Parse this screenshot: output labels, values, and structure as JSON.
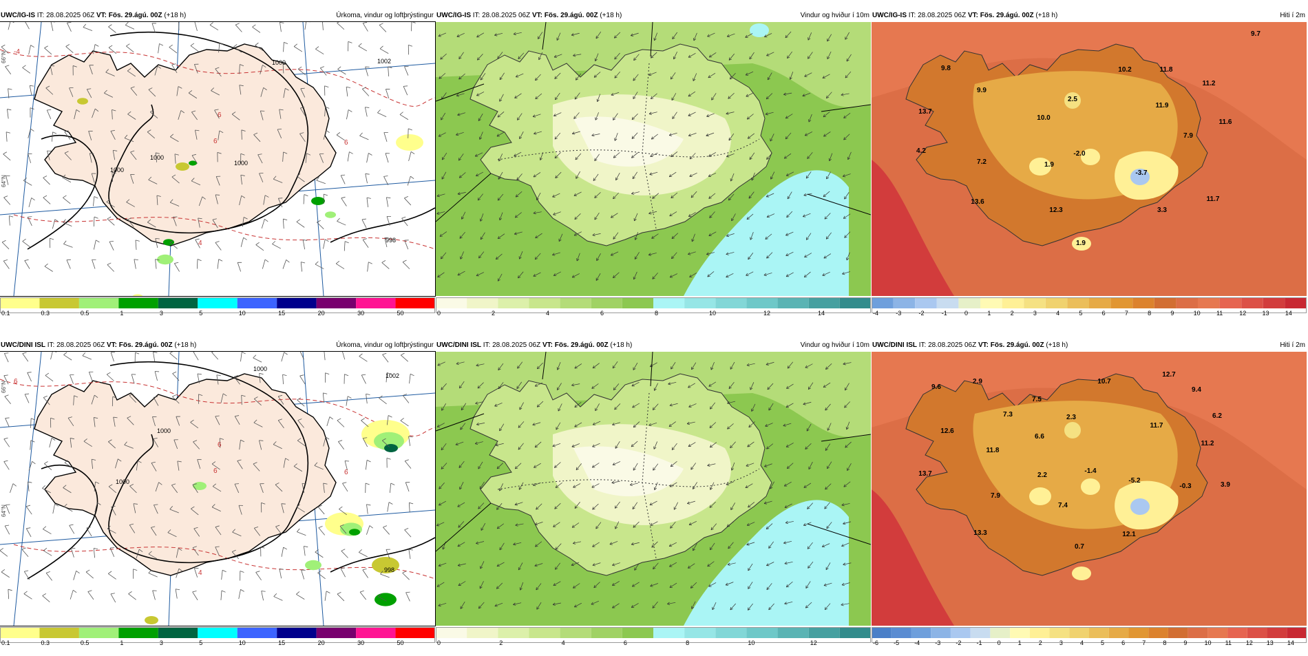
{
  "panels": [
    {
      "id": "p1",
      "model": "UWC/IG-IS",
      "it_label": "IT:",
      "it_value": "28.08.2025 06Z",
      "vt_label": "VT:",
      "vt_value": "Fös. 29.ágú. 00Z",
      "lead": "(+18 h)",
      "product": "Úrkoma, vindur og loftþrýstingur",
      "map_type": "precip",
      "isobar_labels": [
        "1000",
        "1000",
        "1000",
        "1002",
        "1000",
        "998"
      ],
      "temp_contour_labels": [
        "-4",
        "6",
        "6",
        "6",
        "4"
      ],
      "colorbar": {
        "colors": [
          "#ffff8c",
          "#c8c832",
          "#a0f078",
          "#00a000",
          "#006440",
          "#00ffff",
          "#3c64ff",
          "#00008c",
          "#78006e",
          "#ff1493",
          "#ff0000"
        ],
        "labels": [
          "0.1",
          "0.3",
          "0.5",
          "1",
          "3",
          "5",
          "10",
          "15",
          "20",
          "30",
          "50"
        ]
      }
    },
    {
      "id": "p2",
      "model": "UWC/IG-IS",
      "it_label": "IT:",
      "it_value": "28.08.2025 06Z",
      "vt_label": "VT:",
      "vt_value": "Fös. 29.ágú. 00Z",
      "lead": "(+18 h)",
      "product": "Vindur og hviður í 10m",
      "map_type": "wind",
      "colorbar": {
        "colors": [
          "#fafae6",
          "#f0f5c8",
          "#dcf0aa",
          "#c8e68c",
          "#b4dc78",
          "#a0d264",
          "#8cc850",
          "#aaf5f5",
          "#96e6e6",
          "#82d7d7",
          "#6ec8c8",
          "#5ab4b4",
          "#46a0a0",
          "#328c8c"
        ],
        "labels": [
          "0",
          "2",
          "4",
          "6",
          "8",
          "10",
          "12",
          "14"
        ]
      }
    },
    {
      "id": "p3",
      "model": "UWC/IG-IS",
      "it_label": "IT:",
      "it_value": "28.08.2025 06Z",
      "vt_label": "VT:",
      "vt_value": "Fös. 29.ágú. 00Z",
      "lead": "(+18 h)",
      "product": "Hiti í 2m",
      "map_type": "temp",
      "temp_values": [
        "9.7",
        "9.8",
        "9.9",
        "10.2",
        "11.8",
        "11.2",
        "13.7",
        "2.5",
        "11.9",
        "10.0",
        "11.6",
        "7.9",
        "4.2",
        "7.2",
        "1.9",
        "-2.0",
        "-3.7",
        "11.7",
        "13.6",
        "12.3",
        "3.3",
        "1.9"
      ],
      "colorbar": {
        "colors": [
          "#6e9fdc",
          "#8cb4e6",
          "#aac8f0",
          "#c8dcf0",
          "#e6f0c8",
          "#fffab4",
          "#fff096",
          "#f5e182",
          "#f0d26e",
          "#ebbe5a",
          "#e6aa46",
          "#e19632",
          "#dc822d",
          "#d26e32",
          "#dc6e46",
          "#e67850",
          "#e66450",
          "#dc5046",
          "#d23c3c",
          "#c82832"
        ],
        "labels": [
          "-4",
          "-3",
          "-2",
          "-1",
          "0",
          "1",
          "2",
          "3",
          "4",
          "5",
          "6",
          "7",
          "8",
          "9",
          "10",
          "11",
          "12",
          "13",
          "14"
        ]
      }
    },
    {
      "id": "p4",
      "model": "UWC/DINI ISL",
      "it_label": "IT:",
      "it_value": "28.08.2025 06Z",
      "vt_label": "VT:",
      "vt_value": "Fös. 29.ágú. 00Z",
      "lead": "(+18 h)",
      "product": "Úrkoma, vindur og loftþrýstingur",
      "map_type": "precip",
      "isobar_labels": [
        "1000",
        "1002",
        "1000",
        "1000",
        "998"
      ],
      "temp_contour_labels": [
        "6",
        "6",
        "6",
        "6",
        "4"
      ],
      "colorbar": {
        "colors": [
          "#ffff8c",
          "#c8c832",
          "#a0f078",
          "#00a000",
          "#006440",
          "#00ffff",
          "#3c64ff",
          "#00008c",
          "#78006e",
          "#ff1493",
          "#ff0000"
        ],
        "labels": [
          "0.1",
          "0.3",
          "0.5",
          "1",
          "3",
          "5",
          "10",
          "15",
          "20",
          "30",
          "50"
        ]
      }
    },
    {
      "id": "p5",
      "model": "UWC/DINI ISL",
      "it_label": "IT:",
      "it_value": "28.08.2025 06Z",
      "vt_label": "VT:",
      "vt_value": "Fös. 29.ágú. 00Z",
      "lead": "(+18 h)",
      "product": "Vindur og hviður í 10m",
      "map_type": "wind",
      "colorbar": {
        "colors": [
          "#fafae6",
          "#f0f5c8",
          "#dcf0aa",
          "#c8e68c",
          "#b4dc78",
          "#a0d264",
          "#8cc850",
          "#aaf5f5",
          "#96e6e6",
          "#82d7d7",
          "#6ec8c8",
          "#5ab4b4",
          "#46a0a0",
          "#328c8c"
        ],
        "labels": [
          "0",
          "2",
          "4",
          "6",
          "8",
          "10",
          "12"
        ]
      }
    },
    {
      "id": "p6",
      "model": "UWC/DINI ISL",
      "it_label": "IT:",
      "it_value": "28.08.2025 06Z",
      "vt_label": "VT:",
      "vt_value": "Fös. 29.ágú. 00Z",
      "lead": "(+18 h)",
      "product": "Hiti í 2m",
      "map_type": "temp",
      "temp_values": [
        "12.7",
        "9.6",
        "2.9",
        "10.7",
        "9.4",
        "7.5",
        "6.2",
        "12.6",
        "7.3",
        "2.3",
        "6.6",
        "11.7",
        "11.2",
        "11.8",
        "13.7",
        "2.2",
        "-1.4",
        "-5.2",
        "-0.3",
        "3.9",
        "7.9",
        "7.4",
        "13.3",
        "12.1",
        "0.7"
      ],
      "colorbar": {
        "colors": [
          "#4a7fc8",
          "#5a8cd2",
          "#6e9fdc",
          "#8cb4e6",
          "#aac8f0",
          "#c8dcf0",
          "#e6f0c8",
          "#fffab4",
          "#fff096",
          "#f5e182",
          "#f0d26e",
          "#ebbe5a",
          "#e6aa46",
          "#e19632",
          "#dc822d",
          "#d26e32",
          "#dc6e46",
          "#e67850",
          "#e66450",
          "#dc5046",
          "#d23c3c",
          "#c82832"
        ],
        "labels": [
          "-6",
          "-5",
          "-4",
          "-3",
          "-2",
          "-1",
          "0",
          "1",
          "2",
          "3",
          "4",
          "5",
          "6",
          "7",
          "8",
          "9",
          "10",
          "11",
          "12",
          "13",
          "14"
        ]
      }
    }
  ],
  "grid_labels": {
    "lat_66": "66°N",
    "lat_64": "64°N"
  },
  "map_colors": {
    "land_fill": "#fbe9dc",
    "sea_fill": "#ffffff",
    "coast": "#000000",
    "isobar": "#000000",
    "temp_contour": "#c83232",
    "grid": "#1e5aa0",
    "wind_sea": "#aaf5f5",
    "wind_land_light": "#f0f5c8",
    "wind_land_mid": "#c8e68c",
    "wind_sea_mid": "#8cc850"
  }
}
